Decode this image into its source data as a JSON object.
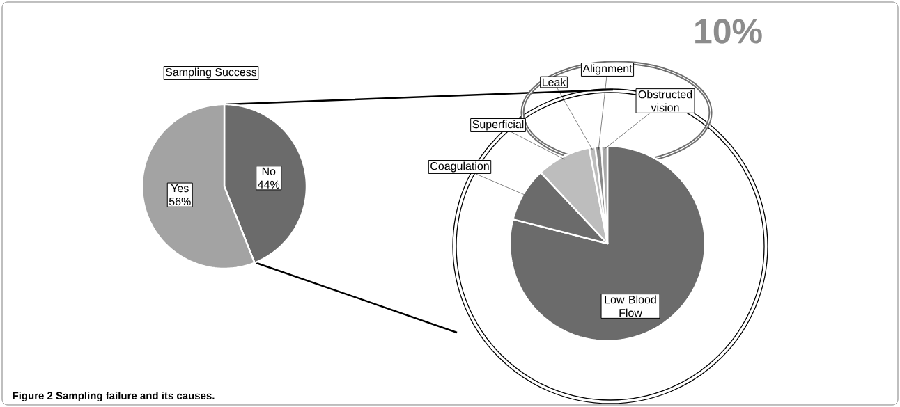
{
  "chart_data": [
    {
      "type": "pie",
      "title": "Sampling Success",
      "categories": [
        "No",
        "Yes"
      ],
      "values": [
        44,
        56
      ],
      "value_labels": [
        "44%",
        "56%"
      ],
      "colors": [
        "#6b6b6b",
        "#a3a3a3"
      ],
      "annotations": [
        "Figure 2 Sampling failure and its causes."
      ]
    },
    {
      "type": "pie",
      "categories": [
        "Low Blood Flow",
        "Coagulation",
        "Superficial",
        "Leak",
        "Alignment",
        "Obstructed vision"
      ],
      "values": [
        79,
        9,
        9,
        1,
        1,
        1
      ],
      "colors": [
        "#6b6b6b",
        "#6b6b6b",
        "#bdbdbd",
        "#bdbdbd",
        "#8a8a8a",
        "#a8a8a8"
      ],
      "annotations": [
        "10%"
      ]
    }
  ]
}
